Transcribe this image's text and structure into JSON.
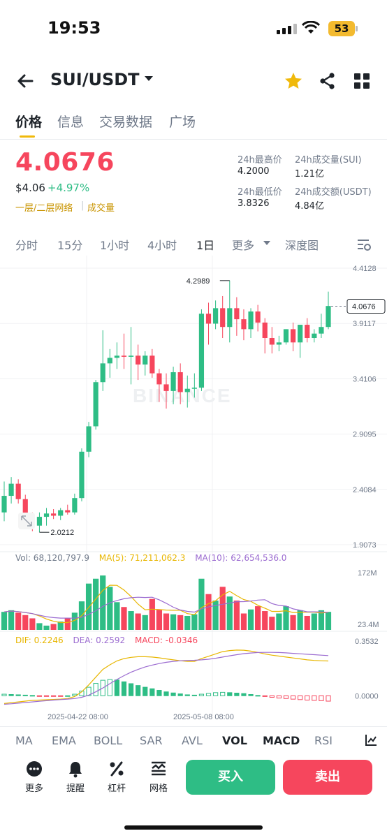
{
  "status_bar": {
    "time": "19:53",
    "battery": "53"
  },
  "header": {
    "pair": "SUI/USDT"
  },
  "tabs": [
    "价格",
    "信息",
    "交易数据",
    "广场"
  ],
  "price_block": {
    "last_price": "4.0676",
    "usd_price": "$4.06",
    "change": "+4.97%",
    "tag_network": "一层/二层网络",
    "tag_volume": "成交量",
    "high_label": "24h最高价",
    "high_value": "4.2000",
    "low_label": "24h最低价",
    "low_value": "3.8326",
    "vol_sui_label": "24h成交量(SUI)",
    "vol_sui_value": "1.21亿",
    "vol_usdt_label": "24h成交额(USDT)",
    "vol_usdt_value": "4.84亿"
  },
  "intervals": [
    "分时",
    "15分",
    "1小时",
    "4小时",
    "1日",
    "更多",
    "深度图"
  ],
  "active_interval": "1日",
  "chart_data": {
    "type": "candlestick",
    "price_axis_ticks": [
      "4.4128",
      "3.9117",
      "3.4106",
      "2.9095",
      "2.4084",
      "1.9073"
    ],
    "price_range": [
      1.9073,
      4.4128
    ],
    "annotations": {
      "high": "4.2989",
      "low": "2.0212",
      "last": "4.0676"
    },
    "watermark": "BINANCE",
    "candles": [
      {
        "o": 2.2,
        "h": 2.48,
        "l": 2.12,
        "c": 2.35
      },
      {
        "o": 2.35,
        "h": 2.52,
        "l": 2.28,
        "c": 2.46
      },
      {
        "o": 2.46,
        "h": 2.5,
        "l": 2.28,
        "c": 2.32
      },
      {
        "o": 2.32,
        "h": 2.36,
        "l": 2.1,
        "c": 2.14
      },
      {
        "o": 2.14,
        "h": 2.2,
        "l": 2.03,
        "c": 2.08
      },
      {
        "o": 2.08,
        "h": 2.2,
        "l": 2.02,
        "c": 2.16
      },
      {
        "o": 2.16,
        "h": 2.24,
        "l": 2.08,
        "c": 2.19
      },
      {
        "o": 2.19,
        "h": 2.23,
        "l": 2.14,
        "c": 2.17
      },
      {
        "o": 2.17,
        "h": 2.24,
        "l": 2.13,
        "c": 2.22
      },
      {
        "o": 2.22,
        "h": 2.27,
        "l": 2.18,
        "c": 2.2
      },
      {
        "o": 2.2,
        "h": 2.37,
        "l": 2.18,
        "c": 2.33
      },
      {
        "o": 2.33,
        "h": 2.78,
        "l": 2.3,
        "c": 2.75
      },
      {
        "o": 2.75,
        "h": 3.02,
        "l": 2.7,
        "c": 2.98
      },
      {
        "o": 2.98,
        "h": 3.4,
        "l": 2.95,
        "c": 3.38
      },
      {
        "o": 3.38,
        "h": 3.85,
        "l": 3.3,
        "c": 3.55
      },
      {
        "o": 3.55,
        "h": 3.68,
        "l": 3.42,
        "c": 3.6
      },
      {
        "o": 3.6,
        "h": 3.74,
        "l": 3.5,
        "c": 3.62
      },
      {
        "o": 3.62,
        "h": 3.82,
        "l": 3.5,
        "c": 3.61
      },
      {
        "o": 3.61,
        "h": 3.88,
        "l": 3.36,
        "c": 3.62
      },
      {
        "o": 3.62,
        "h": 3.72,
        "l": 3.4,
        "c": 3.54
      },
      {
        "o": 3.54,
        "h": 3.66,
        "l": 3.44,
        "c": 3.62
      },
      {
        "o": 3.62,
        "h": 3.68,
        "l": 3.42,
        "c": 3.46
      },
      {
        "o": 3.46,
        "h": 3.5,
        "l": 3.2,
        "c": 3.36
      },
      {
        "o": 3.36,
        "h": 3.46,
        "l": 3.14,
        "c": 3.3
      },
      {
        "o": 3.3,
        "h": 3.52,
        "l": 3.18,
        "c": 3.47
      },
      {
        "o": 3.47,
        "h": 3.55,
        "l": 3.18,
        "c": 3.29
      },
      {
        "o": 3.29,
        "h": 3.44,
        "l": 3.15,
        "c": 3.32
      },
      {
        "o": 3.32,
        "h": 3.46,
        "l": 3.24,
        "c": 3.33
      },
      {
        "o": 3.33,
        "h": 4.04,
        "l": 3.3,
        "c": 4.0
      },
      {
        "o": 4.0,
        "h": 4.1,
        "l": 3.72,
        "c": 3.91
      },
      {
        "o": 3.91,
        "h": 4.12,
        "l": 3.86,
        "c": 4.05
      },
      {
        "o": 4.05,
        "h": 4.16,
        "l": 3.78,
        "c": 3.88
      },
      {
        "o": 3.88,
        "h": 4.3,
        "l": 3.74,
        "c": 4.05
      },
      {
        "o": 4.05,
        "h": 4.15,
        "l": 3.8,
        "c": 3.95
      },
      {
        "o": 3.95,
        "h": 4.04,
        "l": 3.76,
        "c": 3.86
      },
      {
        "o": 3.86,
        "h": 4.05,
        "l": 3.78,
        "c": 4.02
      },
      {
        "o": 4.02,
        "h": 4.08,
        "l": 3.84,
        "c": 3.92
      },
      {
        "o": 3.92,
        "h": 3.96,
        "l": 3.64,
        "c": 3.78
      },
      {
        "o": 3.78,
        "h": 3.88,
        "l": 3.64,
        "c": 3.72
      },
      {
        "o": 3.72,
        "h": 3.8,
        "l": 3.66,
        "c": 3.74
      },
      {
        "o": 3.74,
        "h": 3.86,
        "l": 3.72,
        "c": 3.86
      },
      {
        "o": 3.86,
        "h": 3.92,
        "l": 3.66,
        "c": 3.74
      },
      {
        "o": 3.74,
        "h": 3.9,
        "l": 3.6,
        "c": 3.9
      },
      {
        "o": 3.9,
        "h": 3.96,
        "l": 3.74,
        "c": 3.78
      },
      {
        "o": 3.78,
        "h": 3.86,
        "l": 3.74,
        "c": 3.82
      },
      {
        "o": 3.82,
        "h": 4.0,
        "l": 3.78,
        "c": 3.88
      },
      {
        "o": 3.88,
        "h": 4.2,
        "l": 3.86,
        "c": 4.07
      }
    ],
    "volume_panel": {
      "vol_label": "Vol: 68,120,797.9",
      "ma5_label": "MA(5): 71,211,062.3",
      "ma10_label": "MA(10): 62,654,536.0",
      "axis_ticks": [
        "172M",
        "23.4M"
      ],
      "range": [
        23.4,
        172
      ],
      "values": [
        68,
        72,
        66,
        60,
        52,
        40,
        34,
        38,
        44,
        52,
        66,
        94,
        138,
        150,
        158,
        130,
        92,
        80,
        70,
        64,
        60,
        100,
        74,
        64,
        62,
        60,
        58,
        62,
        150,
        112,
        96,
        130,
        106,
        96,
        64,
        74,
        82,
        70,
        56,
        64,
        82,
        60,
        72,
        58,
        64,
        72,
        68
      ]
    },
    "macd_panel": {
      "dif_label": "DIF: 0.2246",
      "dea_label": "DEA: 0.2592",
      "macd_label": "MACD: -0.0346",
      "axis_ticks": [
        "0.3532",
        "0.0000"
      ],
      "range": [
        -0.08,
        0.3532
      ],
      "hist": [
        0.01,
        0.008,
        0.006,
        0.004,
        0.002,
        -0.002,
        -0.003,
        -0.002,
        -0.001,
        0.0,
        0.01,
        0.03,
        0.055,
        0.08,
        0.1,
        0.105,
        0.102,
        0.09,
        0.078,
        0.066,
        0.055,
        0.045,
        0.035,
        0.025,
        0.018,
        0.012,
        0.006,
        0.004,
        0.01,
        0.015,
        0.02,
        0.022,
        0.02,
        0.017,
        0.014,
        0.008,
        0.002,
        -0.005,
        -0.01,
        -0.015,
        -0.018,
        -0.022,
        -0.025,
        -0.028,
        -0.03,
        -0.032,
        -0.035
      ],
      "dif": [
        -0.05,
        -0.045,
        -0.04,
        -0.035,
        -0.03,
        -0.028,
        -0.026,
        -0.024,
        -0.022,
        -0.018,
        -0.005,
        0.025,
        0.07,
        0.12,
        0.17,
        0.2,
        0.225,
        0.24,
        0.248,
        0.252,
        0.252,
        0.25,
        0.245,
        0.238,
        0.232,
        0.226,
        0.222,
        0.222,
        0.24,
        0.255,
        0.27,
        0.285,
        0.292,
        0.295,
        0.294,
        0.288,
        0.28,
        0.27,
        0.262,
        0.256,
        0.25,
        0.244,
        0.238,
        0.232,
        0.228,
        0.226,
        0.2246
      ],
      "dea": [
        -0.055,
        -0.052,
        -0.048,
        -0.044,
        -0.04,
        -0.036,
        -0.032,
        -0.028,
        -0.025,
        -0.022,
        -0.018,
        -0.01,
        0.004,
        0.025,
        0.05,
        0.078,
        0.105,
        0.13,
        0.152,
        0.17,
        0.186,
        0.198,
        0.208,
        0.216,
        0.222,
        0.226,
        0.228,
        0.229,
        0.232,
        0.236,
        0.242,
        0.25,
        0.258,
        0.265,
        0.272,
        0.276,
        0.279,
        0.28,
        0.28,
        0.279,
        0.277,
        0.274,
        0.271,
        0.268,
        0.265,
        0.262,
        0.2592
      ]
    },
    "x_axis_labels": [
      "2025-04-22 08:00",
      "2025-05-08 08:00"
    ]
  },
  "indicators": [
    "MA",
    "EMA",
    "BOLL",
    "SAR",
    "AVL",
    "VOL",
    "MACD",
    "RSI"
  ],
  "active_indicators": [
    "VOL",
    "MACD"
  ],
  "actions": {
    "more": "更多",
    "alert": "提醒",
    "leverage": "杠杆",
    "grid": "网格",
    "buy": "买入",
    "sell": "卖出"
  },
  "colors": {
    "up": "#2ebd85",
    "down": "#f6465d",
    "accent": "#f0b90b",
    "ma5": "#e8b600",
    "ma10": "#9b6bd0"
  }
}
